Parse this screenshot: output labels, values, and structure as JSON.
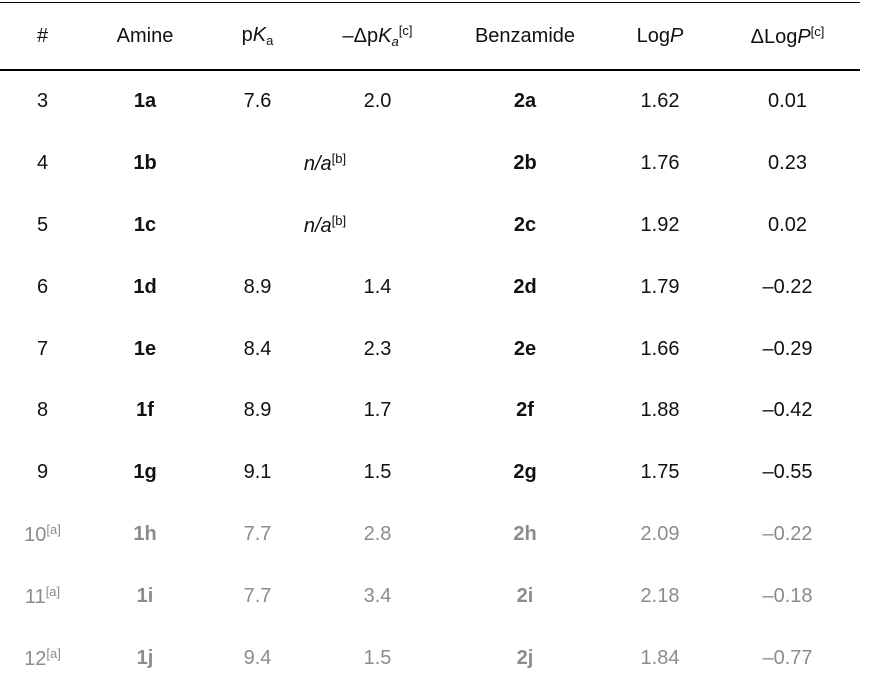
{
  "table": {
    "header": [
      {
        "segments": [
          {
            "text": "#"
          }
        ]
      },
      {
        "segments": [
          {
            "text": "Amine"
          }
        ]
      },
      {
        "segments": [
          {
            "text": "p"
          },
          {
            "text": "K",
            "style": "italic"
          },
          {
            "text": "a",
            "style": "sub"
          }
        ]
      },
      {
        "segments": [
          {
            "text": "–Δp"
          },
          {
            "text": "K",
            "style": "italic"
          },
          {
            "text": "a",
            "style": "sub-italic"
          },
          {
            "text": "[c]",
            "style": "sup"
          }
        ]
      },
      {
        "segments": [
          {
            "text": "Benzamide"
          }
        ]
      },
      {
        "segments": [
          {
            "text": "Log"
          },
          {
            "text": "P",
            "style": "italic"
          }
        ]
      },
      {
        "segments": [
          {
            "text": "ΔLog"
          },
          {
            "text": "P",
            "style": "italic"
          },
          {
            "text": "[c]",
            "style": "sup"
          }
        ]
      }
    ],
    "rows": [
      {
        "cells": [
          {
            "segments": [
              {
                "text": "3"
              }
            ]
          },
          {
            "segments": [
              {
                "text": "1a",
                "style": "bold"
              }
            ]
          },
          {
            "segments": [
              {
                "text": "7.6"
              }
            ]
          },
          {
            "segments": [
              {
                "text": "2.0"
              }
            ]
          },
          {
            "segments": [
              {
                "text": "2a",
                "style": "bold"
              }
            ]
          },
          {
            "segments": [
              {
                "text": "1.62"
              }
            ]
          },
          {
            "segments": [
              {
                "text": "0.01"
              }
            ]
          }
        ]
      },
      {
        "cells": [
          {
            "segments": [
              {
                "text": "4"
              }
            ]
          },
          {
            "segments": [
              {
                "text": "1b",
                "style": "bold"
              }
            ]
          },
          {
            "colspan": 2,
            "segments": [
              {
                "text": "n/a",
                "style": "italic"
              },
              {
                "text": "[b]",
                "style": "sup"
              }
            ]
          },
          {
            "segments": [
              {
                "text": "2b",
                "style": "bold"
              }
            ]
          },
          {
            "segments": [
              {
                "text": "1.76"
              }
            ]
          },
          {
            "segments": [
              {
                "text": "0.23"
              }
            ]
          }
        ]
      },
      {
        "cells": [
          {
            "segments": [
              {
                "text": "5"
              }
            ]
          },
          {
            "segments": [
              {
                "text": "1c",
                "style": "bold"
              }
            ]
          },
          {
            "colspan": 2,
            "segments": [
              {
                "text": "n/a",
                "style": "italic"
              },
              {
                "text": "[b]",
                "style": "sup"
              }
            ]
          },
          {
            "segments": [
              {
                "text": "2c",
                "style": "bold"
              }
            ]
          },
          {
            "segments": [
              {
                "text": "1.92"
              }
            ]
          },
          {
            "segments": [
              {
                "text": "0.02"
              }
            ]
          }
        ]
      },
      {
        "cells": [
          {
            "segments": [
              {
                "text": "6"
              }
            ]
          },
          {
            "segments": [
              {
                "text": "1d",
                "style": "bold"
              }
            ]
          },
          {
            "segments": [
              {
                "text": "8.9"
              }
            ]
          },
          {
            "segments": [
              {
                "text": "1.4"
              }
            ]
          },
          {
            "segments": [
              {
                "text": "2d",
                "style": "bold"
              }
            ]
          },
          {
            "segments": [
              {
                "text": "1.79"
              }
            ]
          },
          {
            "segments": [
              {
                "text": "–0.22"
              }
            ]
          }
        ]
      },
      {
        "cells": [
          {
            "segments": [
              {
                "text": "7"
              }
            ]
          },
          {
            "segments": [
              {
                "text": "1e",
                "style": "bold"
              }
            ]
          },
          {
            "segments": [
              {
                "text": "8.4"
              }
            ]
          },
          {
            "segments": [
              {
                "text": "2.3"
              }
            ]
          },
          {
            "segments": [
              {
                "text": "2e",
                "style": "bold"
              }
            ]
          },
          {
            "segments": [
              {
                "text": "1.66"
              }
            ]
          },
          {
            "segments": [
              {
                "text": "–0.29"
              }
            ]
          }
        ]
      },
      {
        "cells": [
          {
            "segments": [
              {
                "text": "8"
              }
            ]
          },
          {
            "segments": [
              {
                "text": "1f",
                "style": "bold"
              }
            ]
          },
          {
            "segments": [
              {
                "text": "8.9"
              }
            ]
          },
          {
            "segments": [
              {
                "text": "1.7"
              }
            ]
          },
          {
            "segments": [
              {
                "text": "2f",
                "style": "bold"
              }
            ]
          },
          {
            "segments": [
              {
                "text": "1.88"
              }
            ]
          },
          {
            "segments": [
              {
                "text": "–0.42"
              }
            ]
          }
        ]
      },
      {
        "cells": [
          {
            "segments": [
              {
                "text": "9"
              }
            ]
          },
          {
            "segments": [
              {
                "text": "1g",
                "style": "bold"
              }
            ]
          },
          {
            "segments": [
              {
                "text": "9.1"
              }
            ]
          },
          {
            "segments": [
              {
                "text": "1.5"
              }
            ]
          },
          {
            "segments": [
              {
                "text": "2g",
                "style": "bold"
              }
            ]
          },
          {
            "segments": [
              {
                "text": "1.75"
              }
            ]
          },
          {
            "segments": [
              {
                "text": "–0.55"
              }
            ]
          }
        ]
      },
      {
        "color": "#8c8c8c",
        "cells": [
          {
            "segments": [
              {
                "text": "10"
              },
              {
                "text": "[a]",
                "style": "sup"
              }
            ]
          },
          {
            "segments": [
              {
                "text": "1h",
                "style": "bold"
              }
            ]
          },
          {
            "segments": [
              {
                "text": "7.7"
              }
            ]
          },
          {
            "segments": [
              {
                "text": "2.8"
              }
            ]
          },
          {
            "segments": [
              {
                "text": "2h",
                "style": "bold"
              }
            ]
          },
          {
            "segments": [
              {
                "text": "2.09"
              }
            ]
          },
          {
            "segments": [
              {
                "text": "–0.22"
              }
            ]
          }
        ]
      },
      {
        "color": "#8c8c8c",
        "cells": [
          {
            "segments": [
              {
                "text": "11"
              },
              {
                "text": "[a]",
                "style": "sup"
              }
            ]
          },
          {
            "segments": [
              {
                "text": "1i",
                "style": "bold"
              }
            ]
          },
          {
            "segments": [
              {
                "text": "7.7"
              }
            ]
          },
          {
            "segments": [
              {
                "text": "3.4"
              }
            ]
          },
          {
            "segments": [
              {
                "text": "2i",
                "style": "bold"
              }
            ]
          },
          {
            "segments": [
              {
                "text": "2.18"
              }
            ]
          },
          {
            "segments": [
              {
                "text": "–0.18"
              }
            ]
          }
        ]
      },
      {
        "color": "#8c8c8c",
        "cells": [
          {
            "segments": [
              {
                "text": "12"
              },
              {
                "text": "[a]",
                "style": "sup"
              }
            ]
          },
          {
            "segments": [
              {
                "text": "1j",
                "style": "bold"
              }
            ]
          },
          {
            "segments": [
              {
                "text": "9.4"
              }
            ]
          },
          {
            "segments": [
              {
                "text": "1.5"
              }
            ]
          },
          {
            "segments": [
              {
                "text": "2j",
                "style": "bold"
              }
            ]
          },
          {
            "segments": [
              {
                "text": "1.84"
              }
            ]
          },
          {
            "segments": [
              {
                "text": "–0.77"
              }
            ]
          }
        ]
      }
    ]
  }
}
